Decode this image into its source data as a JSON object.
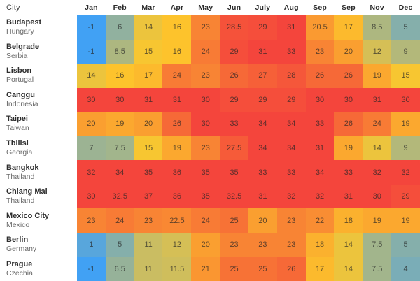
{
  "chart_data": {
    "type": "heatmap",
    "corner_label": "City",
    "columns": [
      "Jan",
      "Feb",
      "Mar",
      "Apr",
      "May",
      "Jun",
      "July",
      "Aug",
      "Sep",
      "Sep",
      "Nov",
      "Dec"
    ],
    "rows": [
      {
        "city": "Budapest",
        "country": "Hungary",
        "values": [
          -1,
          6,
          14,
          16,
          23,
          28.5,
          29,
          31,
          20.5,
          17,
          8.5,
          5
        ]
      },
      {
        "city": "Belgrade",
        "country": "Serbia",
        "values": [
          -1,
          8.5,
          15,
          16,
          24,
          29,
          31,
          33,
          23,
          20,
          12,
          9
        ]
      },
      {
        "city": "Lisbon",
        "country": "Portugal",
        "values": [
          14,
          16,
          17,
          24,
          23,
          26,
          27,
          28,
          26,
          26,
          19,
          15
        ]
      },
      {
        "city": "Canggu",
        "country": "Indonesia",
        "values": [
          30,
          30,
          31,
          31,
          30,
          29,
          29,
          29,
          30,
          30,
          31,
          30
        ]
      },
      {
        "city": "Taipei",
        "country": "Taiwan",
        "values": [
          20,
          19,
          20,
          26,
          30,
          33,
          34,
          34,
          33,
          26,
          24,
          19
        ]
      },
      {
        "city": "Tbilisi",
        "country": "Georgia",
        "values": [
          7,
          7.5,
          15,
          19,
          23,
          27.5,
          34,
          34,
          31,
          19,
          14,
          9
        ]
      },
      {
        "city": "Bangkok",
        "country": "Thailand",
        "values": [
          32,
          34,
          35,
          36,
          35,
          35,
          33,
          33,
          34,
          33,
          32,
          32
        ]
      },
      {
        "city": "Chiang Mai",
        "country": "Thailand",
        "values": [
          30,
          32.5,
          37,
          36,
          35,
          32.5,
          31,
          32,
          32,
          31,
          30,
          29
        ]
      },
      {
        "city": "Mexico City",
        "country": "Mexico",
        "values": [
          23,
          24,
          23,
          22.5,
          24,
          25,
          20,
          23,
          22,
          18,
          19,
          19
        ]
      },
      {
        "city": "Berlin",
        "country": "Germany",
        "values": [
          1,
          5,
          11,
          12,
          20,
          23,
          23,
          23,
          18,
          14,
          7.5,
          5
        ]
      },
      {
        "city": "Prague",
        "country": "Czechia",
        "values": [
          -1,
          6.5,
          11,
          11.5,
          21,
          25,
          25,
          26,
          17,
          14,
          7.5,
          4
        ]
      }
    ],
    "color_scale": {
      "clamp": true,
      "stops": [
        {
          "value": -1,
          "color": "#41A1F4"
        },
        {
          "value": 15.5,
          "color": "#FDC72B"
        },
        {
          "value": 30,
          "color": "#F4453C"
        }
      ]
    }
  }
}
